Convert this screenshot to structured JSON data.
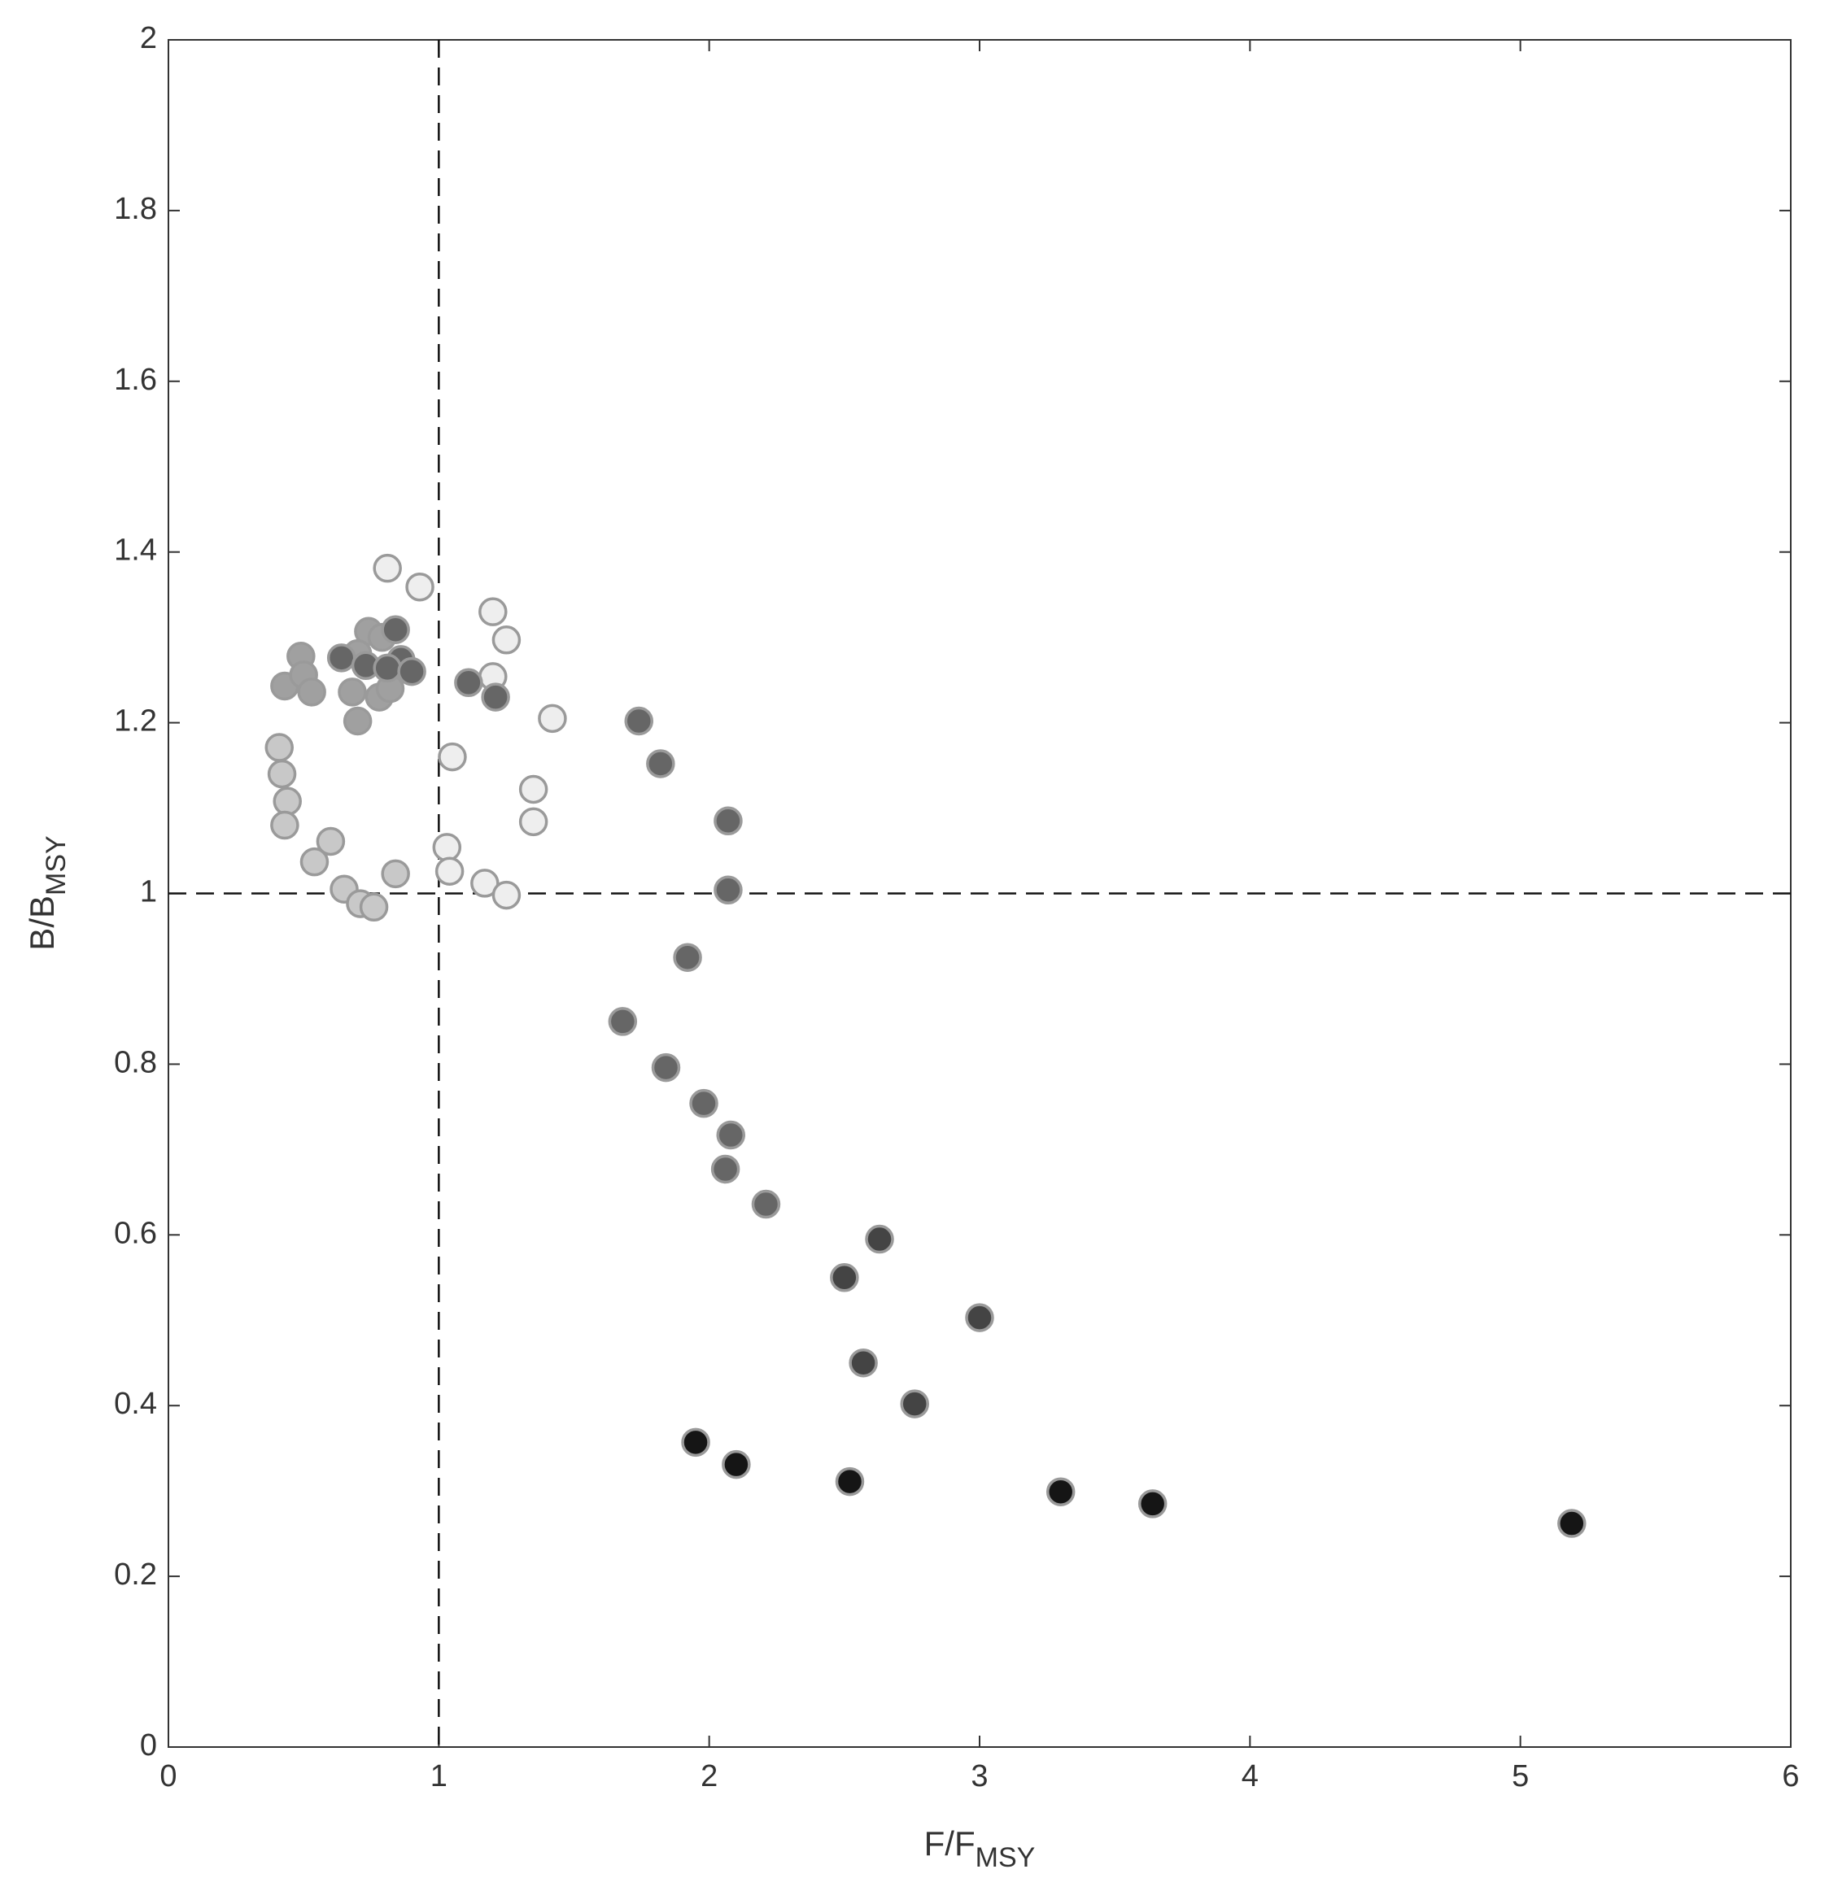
{
  "chart_data": {
    "type": "scatter",
    "xlabel": "F/F",
    "xlabel_sub": "MSY",
    "ylabel": "B/B",
    "ylabel_sub": "MSY",
    "xlim": [
      0,
      6
    ],
    "xticks": [
      0,
      1,
      2,
      3,
      4,
      5,
      6
    ],
    "ylim": [
      0,
      2
    ],
    "yticks": [
      0,
      0.2,
      0.4,
      0.6,
      0.8,
      1,
      1.2,
      1.4,
      1.6,
      1.8,
      2
    ],
    "vlines": [
      1
    ],
    "hlines": [
      1
    ],
    "marker_edge_color": "#9a9a9a",
    "series": [
      {
        "color": "#eeeeee",
        "x": [
          0.81,
          0.93,
          1.2,
          1.25,
          1.2,
          1.42,
          1.05,
          1.35,
          1.35,
          1.03,
          1.04,
          1.17,
          1.25
        ],
        "values": [
          1.381,
          1.359,
          1.33,
          1.297,
          1.254,
          1.205,
          1.16,
          1.122,
          1.084,
          1.054,
          1.026,
          1.012,
          0.998
        ]
      },
      {
        "color": "#c8c8c8",
        "x": [
          0.41,
          0.42,
          0.44,
          0.43,
          0.6,
          0.54,
          0.65,
          0.71,
          0.76,
          0.84
        ],
        "values": [
          1.171,
          1.14,
          1.108,
          1.08,
          1.061,
          1.037,
          1.005,
          0.988,
          0.984,
          1.023
        ]
      },
      {
        "color": "#a0a0a0",
        "x": [
          0.43,
          0.49,
          0.5,
          0.53,
          0.68,
          0.7,
          0.78,
          0.82,
          0.74,
          0.7,
          0.79
        ],
        "values": [
          1.243,
          1.278,
          1.256,
          1.236,
          1.236,
          1.202,
          1.23,
          1.24,
          1.307,
          1.281,
          1.3
        ]
      },
      {
        "color": "#666666",
        "x": [
          0.64,
          0.73,
          0.84,
          0.86,
          0.81,
          0.9,
          1.11,
          1.21,
          1.74,
          1.82,
          2.07,
          2.07,
          1.92,
          1.68,
          1.84,
          1.98,
          2.08,
          2.06,
          2.21
        ],
        "values": [
          1.276,
          1.267,
          1.309,
          1.274,
          1.264,
          1.26,
          1.247,
          1.23,
          1.202,
          1.152,
          1.085,
          1.004,
          0.925,
          0.85,
          0.796,
          0.754,
          0.717,
          0.677,
          0.636
        ]
      },
      {
        "color": "#444444",
        "x": [
          2.63,
          2.5,
          3.0,
          2.57,
          2.76
        ],
        "values": [
          0.595,
          0.55,
          0.503,
          0.45,
          0.402
        ]
      },
      {
        "color": "#151515",
        "x": [
          1.95,
          2.1,
          2.52,
          3.3,
          3.64,
          5.19
        ],
        "values": [
          0.357,
          0.331,
          0.311,
          0.299,
          0.285,
          0.262
        ]
      }
    ]
  }
}
